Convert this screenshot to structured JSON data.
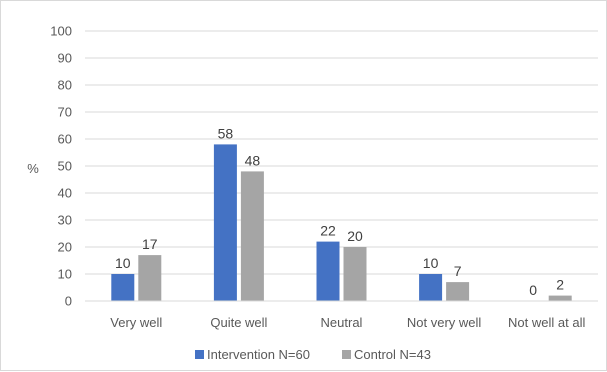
{
  "chart_data": {
    "type": "bar",
    "ylabel": "%",
    "ylim": [
      0,
      100
    ],
    "yticks": [
      0,
      10,
      20,
      30,
      40,
      50,
      60,
      70,
      80,
      90,
      100
    ],
    "grid": true,
    "legend_position": "bottom",
    "categories": [
      "Very well",
      "Quite well",
      "Neutral",
      "Not very well",
      "Not well at all"
    ],
    "series": [
      {
        "name": "Intervention N=60",
        "color": "#4472c4",
        "values": [
          10,
          58,
          22,
          10,
          0
        ]
      },
      {
        "name": "Control N=43",
        "color": "#a5a5a5",
        "values": [
          17,
          48,
          20,
          7,
          2
        ]
      }
    ]
  }
}
